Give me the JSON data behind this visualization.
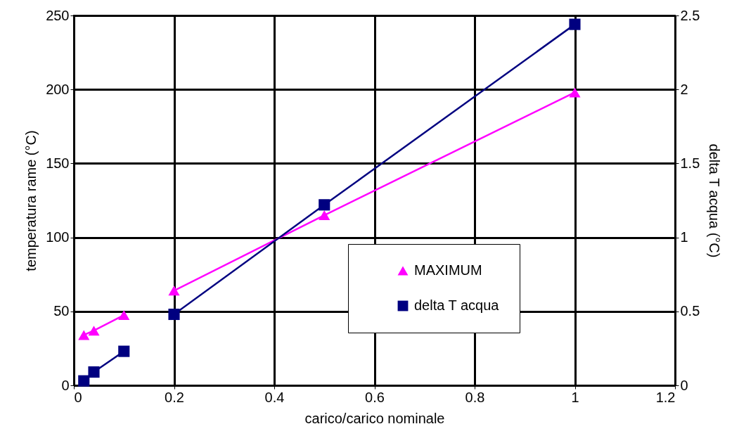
{
  "chart_data": {
    "type": "line",
    "xlabel": "carico/carico nominale",
    "ylabel": "temperatura rame (°C)",
    "y2label": "delta T acqua (°C)",
    "xlim": [
      0,
      1.2
    ],
    "xticks": [
      0,
      0.2,
      0.4,
      0.6,
      0.8,
      1,
      1.2
    ],
    "ylim": [
      0,
      250
    ],
    "yticks": [
      0,
      50,
      100,
      150,
      200,
      250
    ],
    "y2lim": [
      0,
      2.5
    ],
    "y2ticks": [
      0,
      0.5,
      1,
      1.5,
      2,
      2.5
    ],
    "grid": true,
    "legend": "right",
    "series": [
      {
        "name": "MAXIMUM",
        "color": "#ff00ff",
        "marker": "triangle",
        "axis": "y",
        "x": [
          0.02,
          0.04,
          0.1,
          0.15,
          0.2,
          0.5,
          1
        ],
        "values": [
          34,
          37,
          47.5,
          null,
          64,
          115,
          198
        ]
      },
      {
        "name": "delta T acqua",
        "color": "#000080",
        "marker": "square",
        "axis": "y2",
        "x": [
          0.02,
          0.04,
          0.1,
          0.15,
          0.2,
          0.5,
          1
        ],
        "values": [
          0.03,
          0.09,
          0.23,
          null,
          0.48,
          1.22,
          2.44
        ]
      }
    ]
  }
}
